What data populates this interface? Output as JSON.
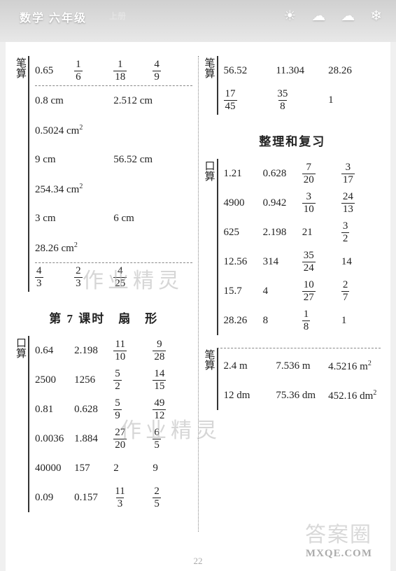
{
  "header": {
    "title": "数学 六年级",
    "subtitle": "上册",
    "weather_icons": [
      "☀",
      "☁",
      "☁",
      "❄"
    ]
  },
  "page_number": "22",
  "watermarks": {
    "wm1": "作业精灵",
    "wm2": "作业精灵",
    "footer_zh": "答案圈",
    "footer_en": "MXQE.COM"
  },
  "left": {
    "bisuan1": {
      "label": "笔算",
      "rows": [
        [
          "0.65",
          {
            "n": "1",
            "d": "6"
          },
          {
            "n": "1",
            "d": "18"
          },
          {
            "n": "4",
            "d": "9"
          }
        ]
      ],
      "dashed": [
        [
          "0.8 cm",
          "2.512 cm"
        ],
        [
          "0.5024 cm²",
          ""
        ],
        [
          "9 cm",
          "56.52 cm"
        ],
        [
          "254.34 cm²",
          ""
        ],
        [
          "3 cm",
          "6 cm"
        ],
        [
          "28.26 cm²",
          ""
        ]
      ],
      "lastrow": [
        {
          "n": "4",
          "d": "3"
        },
        {
          "n": "2",
          "d": "3"
        },
        {
          "n": "4",
          "d": "25"
        },
        ""
      ]
    },
    "heading7": "第 7 课时　扇　形",
    "kousuan7": {
      "label": "口算",
      "rows": [
        [
          "0.64",
          "2.198",
          {
            "n": "11",
            "d": "10"
          },
          {
            "n": "9",
            "d": "28"
          }
        ],
        [
          "2500",
          "1256",
          {
            "n": "5",
            "d": "2"
          },
          {
            "n": "14",
            "d": "15"
          }
        ],
        [
          "0.81",
          "0.628",
          {
            "n": "5",
            "d": "9"
          },
          {
            "n": "49",
            "d": "12"
          }
        ],
        [
          "0.0036",
          "1.884",
          {
            "n": "27",
            "d": "20"
          },
          {
            "n": "6",
            "d": "5"
          }
        ],
        [
          "40000",
          "157",
          "2",
          "9"
        ],
        [
          "0.09",
          "0.157",
          {
            "n": "11",
            "d": "3"
          },
          {
            "n": "2",
            "d": "5"
          }
        ]
      ]
    }
  },
  "right": {
    "bisuan_top": {
      "label": "笔算",
      "rows": [
        [
          "56.52",
          "11.304",
          "28.26"
        ],
        [
          {
            "n": "17",
            "d": "45"
          },
          {
            "n": "35",
            "d": "8"
          },
          "1"
        ]
      ]
    },
    "heading_review": "整理和复习",
    "kousuan_review": {
      "label": "口算",
      "rows": [
        [
          "1.21",
          "0.628",
          {
            "n": "7",
            "d": "20"
          },
          {
            "n": "3",
            "d": "17"
          }
        ],
        [
          "4900",
          "0.942",
          {
            "n": "3",
            "d": "10"
          },
          {
            "n": "24",
            "d": "13"
          }
        ],
        [
          "625",
          "2.198",
          "21",
          {
            "n": "3",
            "d": "2"
          }
        ],
        [
          "12.56",
          "314",
          {
            "n": "35",
            "d": "24"
          },
          "14"
        ],
        [
          "15.7",
          "4",
          {
            "n": "10",
            "d": "27"
          },
          {
            "n": "2",
            "d": "7"
          }
        ],
        [
          "28.26",
          "8",
          {
            "n": "1",
            "d": "8"
          },
          "1"
        ]
      ]
    },
    "bisuan_bottom": {
      "label": "笔算",
      "rows": [
        [
          "2.4 m",
          "7.536 m",
          "4.5216 m²"
        ],
        [
          "12 dm",
          "75.36 dm",
          "452.16 dm²"
        ]
      ]
    }
  }
}
